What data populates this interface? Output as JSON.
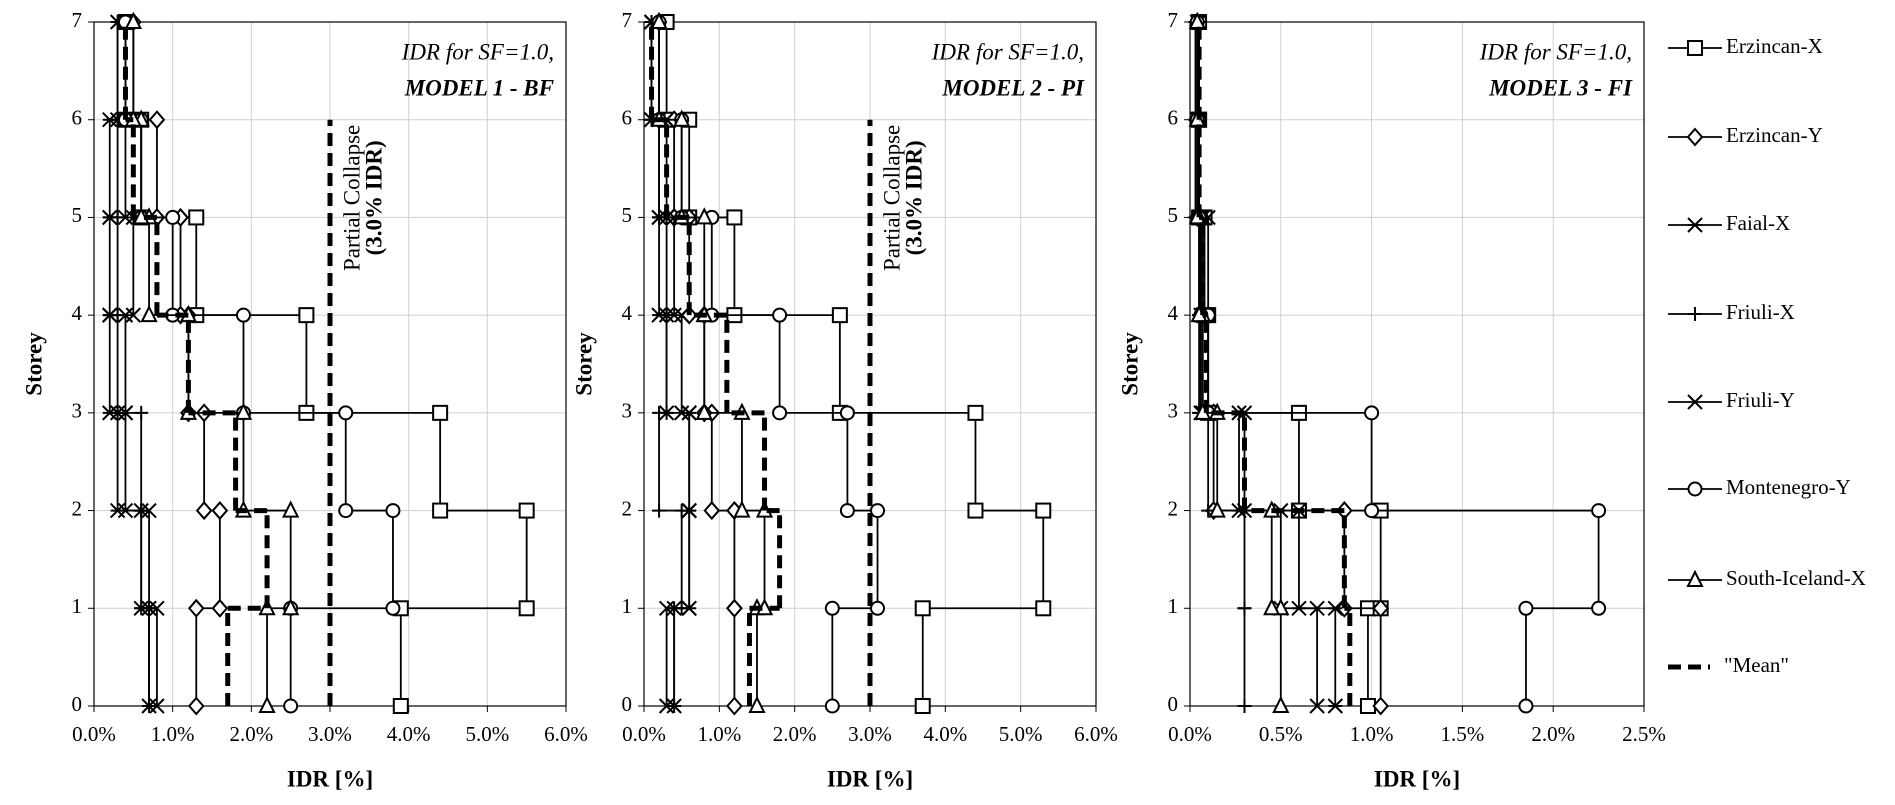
{
  "chart_data": [
    {
      "type": "step",
      "xlabel": "IDR [%]",
      "ylabel": "Storey",
      "annotation": [
        "IDR for SF=1.0,",
        "MODEL 1 - BF"
      ],
      "collapse_line": {
        "value": 3,
        "storeys": [
          0,
          6
        ],
        "label": [
          "Partial Collapse",
          "(3.0% IDR)"
        ]
      },
      "xlim": [
        0,
        6
      ],
      "ylim": [
        0,
        7
      ],
      "grid": true,
      "xticks": [
        {
          "value": 0,
          "label": "0.0%"
        },
        {
          "value": 1,
          "label": "1.0%"
        },
        {
          "value": 2,
          "label": "2.0%"
        },
        {
          "value": 3,
          "label": "3.0%"
        },
        {
          "value": 4,
          "label": "4.0%"
        },
        {
          "value": 5,
          "label": "5.0%"
        },
        {
          "value": 6,
          "label": "6.0%"
        }
      ],
      "yticks": [
        0,
        1,
        2,
        3,
        4,
        5,
        6,
        7
      ],
      "storeys": [
        1,
        2,
        3,
        4,
        5,
        6,
        7
      ],
      "series": [
        {
          "name": "Erzincan-X",
          "color": "#000000",
          "marker": "square",
          "values": [
            3.9,
            5.5,
            4.4,
            2.7,
            1.3,
            0.6,
            0.4
          ]
        },
        {
          "name": "Erzincan-Y",
          "color": "#000000",
          "marker": "diamond",
          "values": [
            1.3,
            1.6,
            1.4,
            1.2,
            1.1,
            0.8,
            0.5
          ]
        },
        {
          "name": "Faial-X",
          "color": "#000000",
          "marker": "asterisk",
          "values": [
            0.7,
            0.6,
            0.3,
            0.2,
            0.2,
            0.2,
            0.3
          ]
        },
        {
          "name": "Friuli-X",
          "color": "#000000",
          "marker": "plus",
          "values": [
            0.7,
            0.6,
            0.6,
            0.3,
            0.3,
            0.3,
            0.3
          ]
        },
        {
          "name": "Friuli-Y",
          "color": "#000000",
          "marker": "cross",
          "values": [
            0.8,
            0.7,
            0.4,
            0.4,
            0.5,
            0.4,
            0.4
          ]
        },
        {
          "name": "Montenegro-Y",
          "color": "#000000",
          "marker": "circle",
          "values": [
            2.5,
            3.8,
            3.2,
            1.9,
            1.0,
            0.6,
            0.4
          ]
        },
        {
          "name": "South-Iceland-X",
          "color": "#000000",
          "marker": "triangle",
          "values": [
            2.2,
            2.5,
            1.9,
            1.2,
            0.7,
            0.6,
            0.5
          ]
        },
        {
          "name": "\"Mean\"",
          "color": "#000000",
          "marker": "none",
          "dashed": true,
          "values": [
            1.7,
            2.2,
            1.8,
            1.2,
            0.8,
            0.5,
            0.4
          ]
        }
      ]
    },
    {
      "type": "step",
      "xlabel": "IDR [%]",
      "ylabel": "Storey",
      "annotation": [
        "IDR for SF=1.0,",
        "MODEL 2 - PI"
      ],
      "collapse_line": {
        "value": 3,
        "storeys": [
          0,
          6
        ],
        "label": [
          "Partial Collapse",
          "(3.0% IDR)"
        ]
      },
      "xlim": [
        0,
        6
      ],
      "ylim": [
        0,
        7
      ],
      "grid": true,
      "xticks": [
        {
          "value": 0,
          "label": "0.0%"
        },
        {
          "value": 1,
          "label": "1.0%"
        },
        {
          "value": 2,
          "label": "2.0%"
        },
        {
          "value": 3,
          "label": "3.0%"
        },
        {
          "value": 4,
          "label": "4.0%"
        },
        {
          "value": 5,
          "label": "5.0%"
        },
        {
          "value": 6,
          "label": "6.0%"
        }
      ],
      "yticks": [
        0,
        1,
        2,
        3,
        4,
        5,
        6,
        7
      ],
      "storeys": [
        1,
        2,
        3,
        4,
        5,
        6,
        7
      ],
      "series": [
        {
          "name": "Erzincan-X",
          "color": "#000000",
          "marker": "square",
          "values": [
            3.7,
            5.3,
            4.4,
            2.6,
            1.2,
            0.6,
            0.3
          ]
        },
        {
          "name": "Erzincan-Y",
          "color": "#000000",
          "marker": "diamond",
          "values": [
            1.2,
            1.2,
            0.9,
            0.8,
            0.6,
            0.4,
            0.2
          ]
        },
        {
          "name": "Faial-X",
          "color": "#000000",
          "marker": "asterisk",
          "values": [
            0.4,
            0.6,
            0.6,
            0.3,
            0.2,
            0.2,
            0.1
          ]
        },
        {
          "name": "Friuli-X",
          "color": "#000000",
          "marker": "plus",
          "values": [
            0.4,
            0.5,
            0.2,
            0.3,
            0.3,
            0.2,
            0.1
          ]
        },
        {
          "name": "Friuli-Y",
          "color": "#000000",
          "marker": "cross",
          "values": [
            0.3,
            0.6,
            0.6,
            0.5,
            0.4,
            0.3,
            0.1
          ]
        },
        {
          "name": "Montenegro-Y",
          "color": "#000000",
          "marker": "circle",
          "values": [
            2.5,
            3.1,
            2.7,
            1.8,
            0.9,
            0.5,
            0.2
          ]
        },
        {
          "name": "South-Iceland-X",
          "color": "#000000",
          "marker": "triangle",
          "values": [
            1.5,
            1.6,
            1.3,
            0.8,
            0.8,
            0.5,
            0.2
          ]
        },
        {
          "name": "\"Mean\"",
          "color": "#000000",
          "marker": "none",
          "dashed": true,
          "values": [
            1.4,
            1.8,
            1.6,
            1.1,
            0.6,
            0.3,
            0.1
          ]
        }
      ]
    },
    {
      "type": "step",
      "xlabel": "IDR [%]",
      "ylabel": "Storey",
      "annotation": [
        "IDR for SF=1.0,",
        "MODEL 3 - FI"
      ],
      "xlim": [
        0,
        2.5
      ],
      "ylim": [
        0,
        7
      ],
      "grid": true,
      "xticks": [
        {
          "value": 0,
          "label": "0.0%"
        },
        {
          "value": 0.5,
          "label": "0.5%"
        },
        {
          "value": 1,
          "label": "1.0%"
        },
        {
          "value": 1.5,
          "label": "1.5%"
        },
        {
          "value": 2,
          "label": "2.0%"
        },
        {
          "value": 2.5,
          "label": "2.5%"
        }
      ],
      "yticks": [
        0,
        1,
        2,
        3,
        4,
        5,
        6,
        7
      ],
      "storeys": [
        1,
        2,
        3,
        4,
        5,
        6,
        7
      ],
      "series": [
        {
          "name": "Erzincan-X",
          "color": "#000000",
          "marker": "square",
          "values": [
            0.98,
            1.05,
            0.6,
            0.1,
            0.08,
            0.05,
            0.05
          ]
        },
        {
          "name": "Erzincan-Y",
          "color": "#000000",
          "marker": "diamond",
          "values": [
            1.05,
            0.85,
            0.13,
            0.1,
            0.06,
            0.04,
            0.04
          ]
        },
        {
          "name": "Faial-X",
          "color": "#000000",
          "marker": "asterisk",
          "values": [
            0.8,
            0.6,
            0.27,
            0.06,
            0.07,
            0.05,
            0.05
          ]
        },
        {
          "name": "Friuli-X",
          "color": "#000000",
          "marker": "plus",
          "values": [
            0.3,
            0.3,
            0.1,
            0.05,
            0.05,
            0.03,
            0.03
          ]
        },
        {
          "name": "Friuli-Y",
          "color": "#000000",
          "marker": "cross",
          "values": [
            0.7,
            0.5,
            0.3,
            0.07,
            0.1,
            0.05,
            0.04
          ]
        },
        {
          "name": "Montenegro-Y",
          "color": "#000000",
          "marker": "circle",
          "values": [
            1.85,
            2.25,
            1.0,
            0.1,
            0.06,
            0.05,
            0.04
          ]
        },
        {
          "name": "South-Iceland-X",
          "color": "#000000",
          "marker": "triangle",
          "values": [
            0.5,
            0.45,
            0.15,
            0.07,
            0.05,
            0.04,
            0.04
          ]
        },
        {
          "name": "\"Mean\"",
          "color": "#000000",
          "marker": "none",
          "dashed": true,
          "values": [
            0.88,
            0.85,
            0.3,
            0.09,
            0.07,
            0.05,
            0.05
          ]
        }
      ]
    }
  ]
}
